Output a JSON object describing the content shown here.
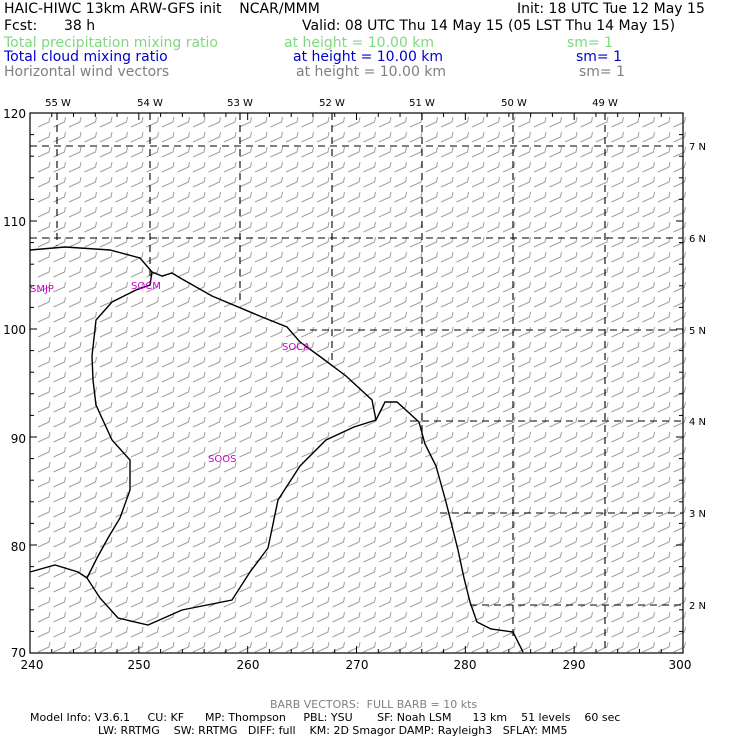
{
  "header": {
    "title": "HAIC-HIWC 13km ARW-GFS init    NCAR/MMM",
    "init": "Init: 18 UTC Tue 12 May 15",
    "fcst_label": "Fcst:",
    "fcst_value": "38 h",
    "valid": "Valid: 08 UTC Thu 14 May 15 (05 LST Thu 14 May 15)"
  },
  "fields": [
    {
      "name": "Total precipitation mixing ratio",
      "height": "at height = 10.00 km",
      "sm": "sm= 1",
      "color": "#7fd97f"
    },
    {
      "name": "Total cloud mixing ratio",
      "height": "at height = 10.00 km",
      "sm": "sm= 1",
      "color": "#0000cc"
    },
    {
      "name": "Horizontal wind vectors",
      "height": "at height = 10.00 km",
      "sm": "sm= 1",
      "color": "#808080"
    }
  ],
  "map": {
    "x_ticks": [
      "240",
      "250",
      "260",
      "270",
      "280",
      "290",
      "300"
    ],
    "y_ticks": [
      "70",
      "80",
      "90",
      "100",
      "110",
      "120"
    ],
    "lon_labels": [
      "55 W",
      "54 W",
      "53 W",
      "52 W",
      "51 W",
      "50 W",
      "49 W"
    ],
    "lat_labels": [
      "7 N",
      "6 N",
      "5 N",
      "4 N",
      "3 N",
      "2 N"
    ],
    "region_labels": [
      "SMJP",
      "SOCM",
      "SOCA",
      "SOOS"
    ],
    "label_color": "#cc00cc",
    "barb_color": "#a0a0a0",
    "wind_direction": "west-northwest, light (~5 kt half barbs)"
  },
  "footer": {
    "barb_note": "BARB VECTORS:  FULL BARB = 10 kts",
    "line1": "Model Info: V3.6.1     CU: KF      MP: Thompson     PBL: YSU       SF: Noah LSM      13 km    51 levels    60 sec",
    "line2": "LW: RRTMG    SW: RRTMG   DIFF: full    KM: 2D Smagor DAMP: Rayleigh3   SFLAY: MM5"
  }
}
